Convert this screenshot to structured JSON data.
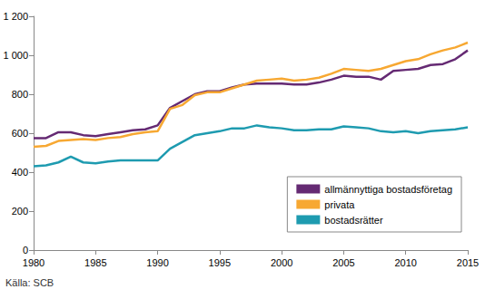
{
  "chart_data": {
    "type": "line",
    "source": "Källa: SCB",
    "x": [
      1980,
      1981,
      1982,
      1983,
      1984,
      1985,
      1986,
      1987,
      1988,
      1989,
      1990,
      1991,
      1992,
      1993,
      1994,
      1995,
      1996,
      1997,
      1998,
      1999,
      2000,
      2001,
      2002,
      2003,
      2004,
      2005,
      2006,
      2007,
      2008,
      2009,
      2010,
      2011,
      2012,
      2013,
      2014,
      2015
    ],
    "series": [
      {
        "name": "allmännyttiga bostadsföretag",
        "color": "#652a73",
        "values": [
          575,
          575,
          605,
          605,
          590,
          585,
          595,
          605,
          615,
          620,
          640,
          730,
          765,
          800,
          815,
          815,
          835,
          850,
          855,
          855,
          855,
          850,
          850,
          860,
          875,
          895,
          890,
          890,
          875,
          920,
          925,
          930,
          950,
          955,
          980,
          1025
        ]
      },
      {
        "name": "privata",
        "color": "#f7a832",
        "values": [
          530,
          535,
          560,
          565,
          570,
          565,
          575,
          580,
          595,
          605,
          610,
          725,
          745,
          795,
          810,
          810,
          830,
          850,
          870,
          875,
          880,
          870,
          875,
          885,
          905,
          930,
          925,
          920,
          930,
          950,
          970,
          980,
          1005,
          1025,
          1040,
          1065
        ]
      },
      {
        "name": "bostadsrätter",
        "color": "#1e9bb0",
        "values": [
          430,
          435,
          450,
          480,
          450,
          445,
          455,
          460,
          460,
          460,
          460,
          520,
          555,
          590,
          600,
          610,
          625,
          625,
          640,
          630,
          625,
          615,
          615,
          620,
          620,
          635,
          630,
          625,
          610,
          605,
          610,
          600,
          610,
          615,
          620,
          630
        ]
      }
    ],
    "xlim": [
      1980,
      2015
    ],
    "xticks": [
      1980,
      1985,
      1990,
      1995,
      2000,
      2005,
      2010,
      2015
    ],
    "ylim": [
      0,
      1200
    ],
    "yticks": [
      0,
      200,
      400,
      600,
      800,
      {
        "value": 1000,
        "label": "1 000"
      },
      {
        "value": 1200,
        "label": "1 200"
      }
    ],
    "grid": false,
    "legend": "lower right"
  }
}
